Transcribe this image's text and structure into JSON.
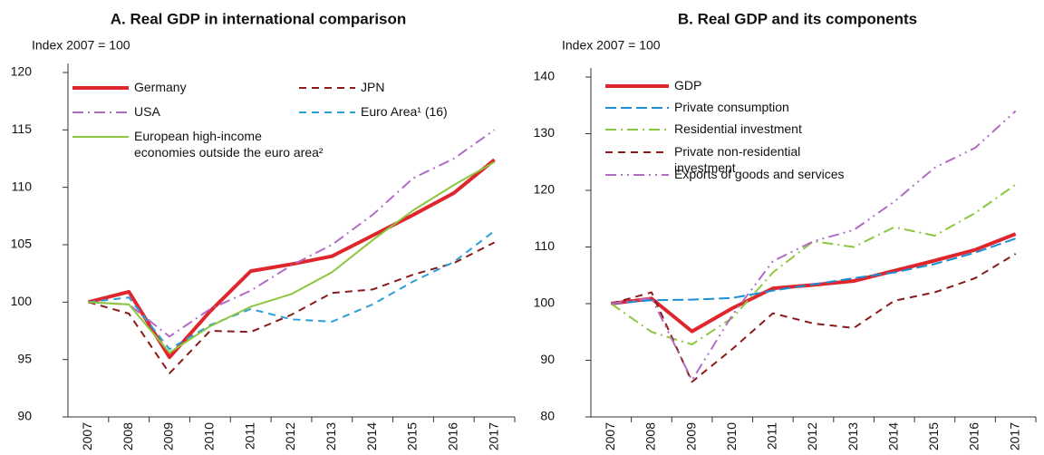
{
  "chart_data": [
    {
      "type": "line",
      "title": "A. Real GDP in international comparison",
      "y_label": "Index 2007 = 100",
      "categories": [
        "2007",
        "2008",
        "2009",
        "2010",
        "2011",
        "2012",
        "2013",
        "2014",
        "2015",
        "2016",
        "2017"
      ],
      "ylim": [
        90,
        120
      ],
      "yticks": [
        90,
        95,
        100,
        105,
        110,
        115,
        120
      ],
      "grid": false,
      "series": [
        {
          "name": "Germany",
          "color": "#e0262d",
          "dash": "solid",
          "width": 4,
          "values": [
            100,
            100.9,
            95.2,
            99.2,
            102.7,
            103.3,
            104.0,
            105.8,
            107.6,
            109.5,
            112.4
          ]
        },
        {
          "name": "JPN",
          "color": "#8b1a1a",
          "dash": "dashed",
          "width": 2,
          "values": [
            100,
            99.0,
            93.8,
            97.5,
            97.4,
            98.9,
            100.8,
            101.1,
            102.4,
            103.4,
            105.2
          ]
        },
        {
          "name": "USA",
          "color": "#b26cc6",
          "dash": "dashdot",
          "width": 2,
          "values": [
            100,
            99.8,
            97.0,
            99.4,
            101.0,
            103.2,
            105.0,
            107.6,
            110.8,
            112.5,
            115.0
          ]
        },
        {
          "name": "Euro Area¹ (16)",
          "color": "#2a9fd8",
          "dash": "dashed",
          "width": 2,
          "values": [
            100,
            100.4,
            95.9,
            98.0,
            99.4,
            98.5,
            98.3,
            99.8,
            101.8,
            103.5,
            106.2
          ]
        },
        {
          "name": "European high-income economies outside the euro area²",
          "color": "#8dc63f",
          "dash": "solid",
          "width": 2,
          "values": [
            100,
            99.8,
            95.6,
            97.9,
            99.6,
            100.7,
            102.6,
            105.4,
            108.0,
            110.2,
            112.2
          ]
        }
      ]
    },
    {
      "type": "line",
      "title": "B. Real GDP and its components",
      "y_label": "Index 2007 = 100",
      "categories": [
        "2007",
        "2008",
        "2009",
        "2010",
        "2011",
        "2012",
        "2013",
        "2014",
        "2015",
        "2016",
        "2017"
      ],
      "ylim": [
        80,
        140
      ],
      "yticks": [
        80,
        90,
        100,
        110,
        120,
        130,
        140
      ],
      "grid": false,
      "series": [
        {
          "name": "GDP",
          "color": "#e0262d",
          "dash": "solid",
          "width": 4,
          "values": [
            100,
            100.9,
            95.1,
            99.2,
            102.7,
            103.3,
            104.0,
            105.8,
            107.6,
            109.5,
            112.3
          ]
        },
        {
          "name": "Private consumption",
          "color": "#1a8fd6",
          "dash": "longdash",
          "width": 2,
          "values": [
            100,
            100.6,
            100.7,
            101.0,
            102.3,
            103.4,
            104.5,
            105.5,
            107.0,
            109.0,
            111.5
          ]
        },
        {
          "name": "Residential investment",
          "color": "#8dc63f",
          "dash": "dashdot",
          "width": 2,
          "values": [
            100,
            95.0,
            92.8,
            97.5,
            105.5,
            111.0,
            110.0,
            113.5,
            112.0,
            116.0,
            121.0
          ]
        },
        {
          "name": "Private non-residential investment",
          "color": "#8b1a1a",
          "dash": "dashed",
          "width": 2,
          "values": [
            100,
            102.0,
            86.2,
            92.0,
            98.3,
            96.5,
            95.7,
            100.5,
            102.0,
            104.5,
            108.8
          ]
        },
        {
          "name": "Exports of goods and services",
          "color": "#b26cc6",
          "dash": "dashdotdot",
          "width": 2,
          "values": [
            100,
            101.0,
            86.5,
            98.0,
            107.5,
            111.0,
            113.0,
            118.0,
            124.0,
            127.5,
            134.0
          ]
        }
      ]
    }
  ]
}
